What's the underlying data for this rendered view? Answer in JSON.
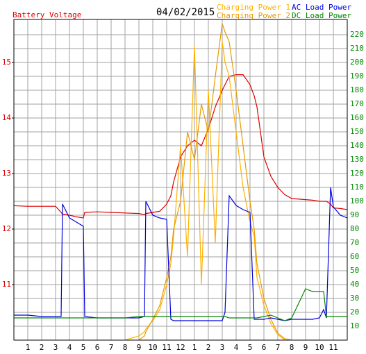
{
  "chart_data": {
    "type": "line",
    "title": "04/02/2015",
    "x": [
      0,
      1,
      2,
      3,
      3.4,
      3.5,
      4,
      4.5,
      5,
      5.1,
      6,
      7,
      8,
      9,
      9.4,
      9.5,
      10,
      10.5,
      11,
      11.3,
      11.5,
      12,
      12.5,
      13,
      13.5,
      14,
      14.5,
      15,
      15.2,
      15.5,
      16,
      16.5,
      17,
      17.3,
      17.5,
      18,
      18.5,
      19,
      19.5,
      20,
      21,
      21.5,
      22,
      22.3,
      22.5,
      22.8,
      23,
      23.5,
      24
    ],
    "xlim": [
      0,
      24
    ],
    "xticks": [
      1,
      2,
      3,
      4,
      5,
      6,
      7,
      8,
      9,
      10,
      11,
      12,
      {
        "value": 13,
        "label": "1"
      },
      {
        "value": 14,
        "label": "2"
      },
      {
        "value": 15,
        "label": "3"
      },
      {
        "value": 16,
        "label": "4"
      },
      {
        "value": 17,
        "label": "5"
      },
      {
        "value": 18,
        "label": "6"
      },
      {
        "value": 19,
        "label": "7"
      },
      {
        "value": 20,
        "label": "8"
      },
      {
        "value": 21,
        "label": "9"
      },
      {
        "value": 22,
        "label": "10"
      },
      {
        "value": 23,
        "label": "11"
      }
    ],
    "ylim": [
      10,
      15.775
    ],
    "yticks": [
      11,
      12,
      13,
      14,
      15
    ],
    "y2lim": [
      0,
      231
    ],
    "y2ticks": [
      10,
      20,
      30,
      40,
      50,
      60,
      70,
      80,
      90,
      100,
      110,
      120,
      130,
      140,
      150,
      160,
      170,
      180,
      190,
      200,
      210,
      220
    ],
    "grid": true,
    "series": [
      {
        "name": "Battery Voltage",
        "color": "#dd0000",
        "axis": "y",
        "values": [
          12.42,
          12.41,
          12.41,
          12.41,
          12.3,
          12.27,
          12.25,
          12.22,
          12.2,
          12.3,
          12.31,
          12.3,
          12.29,
          12.28,
          12.26,
          12.28,
          12.3,
          12.32,
          12.45,
          12.6,
          12.85,
          13.3,
          13.5,
          13.6,
          13.5,
          13.8,
          14.2,
          14.5,
          14.6,
          14.75,
          14.78,
          14.78,
          14.6,
          14.4,
          14.2,
          13.3,
          12.95,
          12.75,
          12.62,
          12.55,
          12.53,
          12.52,
          12.5,
          12.5,
          12.5,
          12.45,
          12.38,
          12.37,
          12.35
        ]
      },
      {
        "name": "Charging Power 1",
        "color": "#ffb000",
        "axis": "y2",
        "values": [
          null,
          null,
          null,
          null,
          null,
          null,
          null,
          null,
          null,
          null,
          null,
          null,
          0,
          3,
          6,
          8,
          14,
          22,
          40,
          55,
          75,
          140,
          60,
          212,
          40,
          180,
          70,
          215,
          200,
          190,
          150,
          110,
          85,
          75,
          45,
          25,
          12,
          4,
          0,
          0,
          null,
          null,
          null,
          null,
          null,
          null,
          null,
          null,
          null
        ]
      },
      {
        "name": "Charging Power 2",
        "color": "#e89a00",
        "axis": "y2",
        "values": [
          null,
          null,
          null,
          null,
          null,
          null,
          null,
          null,
          null,
          null,
          null,
          null,
          null,
          0,
          3,
          6,
          15,
          25,
          45,
          60,
          80,
          100,
          150,
          130,
          170,
          150,
          190,
          228,
          222,
          215,
          180,
          140,
          100,
          80,
          55,
          30,
          15,
          5,
          1,
          0,
          null,
          null,
          null,
          null,
          null,
          null,
          null,
          null,
          null
        ]
      },
      {
        "name": "AC Load Power",
        "color": "#0000dd",
        "axis": "y2",
        "values": [
          18,
          18,
          17,
          17,
          17,
          98,
          88,
          85,
          82,
          17,
          16,
          16,
          16,
          16,
          17,
          100,
          90,
          88,
          87,
          15,
          14,
          14,
          14,
          14,
          14,
          14,
          14,
          14,
          20,
          104,
          97,
          94,
          92,
          15,
          15,
          15,
          16,
          15,
          14,
          15,
          15,
          15,
          16,
          22,
          16,
          110,
          96,
          90,
          88
        ]
      },
      {
        "name": "DC Load Power",
        "color": "#008800",
        "axis": "y2",
        "values": [
          16,
          16,
          16,
          16,
          16,
          16,
          16,
          16,
          16,
          16,
          16,
          16,
          16,
          17,
          17,
          17,
          17,
          17,
          17,
          17,
          17,
          17,
          17,
          17,
          17,
          17,
          17,
          17,
          17,
          16,
          16,
          16,
          16,
          16,
          16,
          17,
          18,
          16,
          14,
          16,
          37,
          35,
          35,
          35,
          17,
          17,
          17,
          17,
          17
        ]
      }
    ]
  }
}
